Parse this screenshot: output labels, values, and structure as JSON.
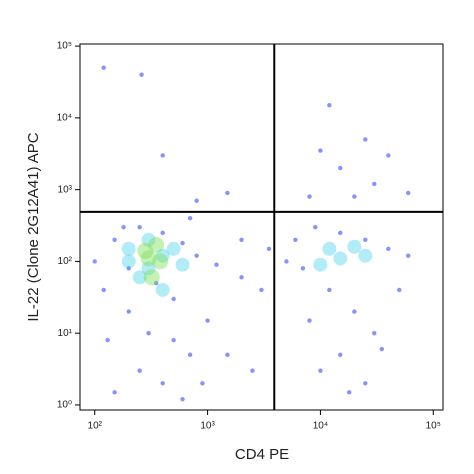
{
  "chart_data": {
    "type": "scatter",
    "xlabel": "CD4 PE",
    "ylabel": "IL-22 (Clone 2G12A41) APC",
    "xscale": "log",
    "yscale": "log",
    "xlim": [
      74,
      122000
    ],
    "ylim": [
      0.85,
      107000
    ],
    "xticks": [
      {
        "value": 100,
        "label": "10²"
      },
      {
        "value": 1000,
        "label": "10³"
      },
      {
        "value": 10000,
        "label": "10⁴"
      },
      {
        "value": 100000,
        "label": "10⁵"
      }
    ],
    "yticks": [
      {
        "value": 1,
        "label": "10⁰"
      },
      {
        "value": 10,
        "label": "10¹"
      },
      {
        "value": 100,
        "label": "10²"
      },
      {
        "value": 1000,
        "label": "10³"
      },
      {
        "value": 10000,
        "label": "10⁴"
      },
      {
        "value": 100000,
        "label": "10⁵"
      }
    ],
    "gates": {
      "x": 3900,
      "y": 490
    },
    "series": [
      {
        "color": "#1f3bff",
        "x": [
          150,
          250,
          400,
          600,
          800,
          1200,
          2000,
          3000,
          120,
          200,
          300,
          500,
          700,
          250,
          400,
          150,
          1000,
          1500,
          2500,
          350,
          200,
          500,
          900,
          130,
          180,
          700,
          2000,
          3500,
          100,
          600,
          6000,
          9000,
          15000,
          25000,
          40000,
          60000,
          7000,
          12000,
          20000,
          30000,
          15000,
          10000,
          25000,
          8000,
          50000,
          5000,
          18000,
          35000,
          8000,
          15000,
          25000,
          12000,
          30000,
          40000,
          20000,
          10000,
          60000,
          120,
          260,
          800,
          1500,
          400
        ],
        "y": [
          200,
          300,
          250,
          180,
          120,
          90,
          60,
          40,
          40,
          20,
          10,
          8,
          5,
          3,
          2,
          1.5,
          15,
          5,
          3,
          50,
          80,
          30,
          2,
          8,
          300,
          400,
          200,
          150,
          100,
          1.2,
          200,
          300,
          250,
          200,
          150,
          120,
          80,
          40,
          20,
          10,
          5,
          3,
          2,
          15,
          40,
          100,
          1.5,
          6,
          800,
          2000,
          5000,
          15000,
          1200,
          3000,
          800,
          3500,
          900,
          50000,
          40000,
          700,
          900,
          3000
        ]
      },
      {
        "color": "#20c8e8",
        "x": [
          200,
          300,
          400,
          300,
          500,
          250,
          600,
          12000,
          15000,
          20000,
          10000,
          25000,
          400,
          200
        ],
        "y": [
          150,
          200,
          120,
          80,
          150,
          60,
          90,
          150,
          110,
          160,
          90,
          120,
          40,
          100
        ]
      },
      {
        "color": "#7ee05a",
        "x": [
          280,
          350,
          380,
          300,
          320
        ],
        "y": [
          140,
          170,
          100,
          110,
          60
        ]
      }
    ]
  }
}
